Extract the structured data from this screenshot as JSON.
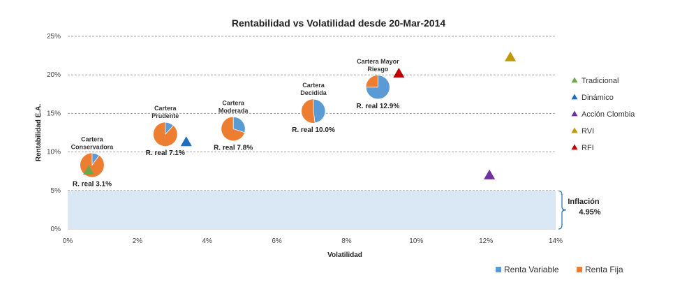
{
  "chart_data": {
    "type": "scatter",
    "title": "Rentabilidad vs Volatilidad desde 20-Mar-2014",
    "xlabel": "Volatilidad",
    "ylabel": "Rentabilidad  E.A.",
    "xlim": [
      0,
      14
    ],
    "ylim": [
      0,
      25
    ],
    "xticks": [
      "0%",
      "2%",
      "4%",
      "6%",
      "8%",
      "10%",
      "12%",
      "14%"
    ],
    "yticks": [
      "0%",
      "5%",
      "10%",
      "15%",
      "20%",
      "25%"
    ],
    "grid": true,
    "inflation": {
      "label": "Inflación",
      "value_label": "4.95%",
      "value": 4.95
    },
    "portfolios": [
      {
        "name_lines": [
          "Cartera",
          "Conservadora"
        ],
        "x": 0.7,
        "y": 8.3,
        "renta_variable_pct": 10,
        "real_label": "R. real 3.1%"
      },
      {
        "name_lines": [
          "Cartera",
          "Prudente"
        ],
        "x": 2.8,
        "y": 12.3,
        "renta_variable_pct": 12,
        "real_label": "R. real 7.1%"
      },
      {
        "name_lines": [
          "Cartera",
          "Moderada"
        ],
        "x": 4.75,
        "y": 13.0,
        "renta_variable_pct": 30,
        "real_label": "R. real 7.8%"
      },
      {
        "name_lines": [
          "Cartera",
          "Decidida"
        ],
        "x": 7.05,
        "y": 15.3,
        "renta_variable_pct": 48,
        "real_label": "R. real 10.0%"
      },
      {
        "name_lines": [
          "Cartera Mayor",
          "Riesgo"
        ],
        "x": 8.9,
        "y": 18.4,
        "renta_variable_pct": 75,
        "real_label": "R. real 12.9%"
      }
    ],
    "series": [
      {
        "name": "Tradicional",
        "color": "#70a64a",
        "x": 0.6,
        "y": 7.6
      },
      {
        "name": "Dinámico",
        "color": "#1f6ebd",
        "x": 3.4,
        "y": 11.3
      },
      {
        "name": "Acción Clombia",
        "color": "#7030a0",
        "x": 12.1,
        "y": 7.0
      },
      {
        "name": "RVI",
        "color": "#c09a00",
        "x": 12.7,
        "y": 22.3
      },
      {
        "name": "RFI",
        "color": "#c00000",
        "x": 9.5,
        "y": 20.2
      }
    ],
    "pie_legend": [
      {
        "name": "Renta Variable",
        "color": "#5b9bd5"
      },
      {
        "name": "Renta Fija",
        "color": "#ed7d31"
      }
    ]
  }
}
